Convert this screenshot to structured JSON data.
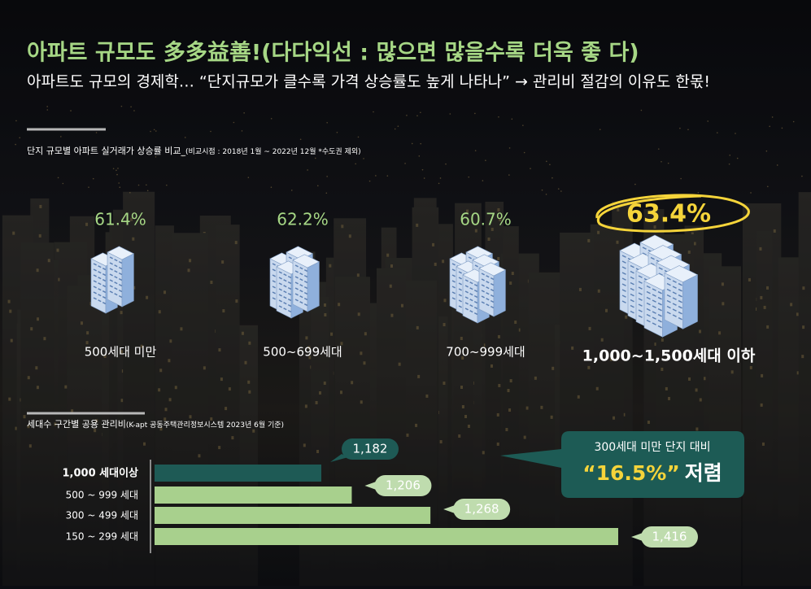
{
  "header": {
    "title": "아파트 규모도 多多益善!(다다익선 : 많으면 많을수록 더욱 좋 다)",
    "subtitle": "아파트도 규모의 경제학… “단지규모가 클수록 가격 상승률도 높게 나타나” → 관리비 절감의 이유도 한몫!"
  },
  "chart_data": [
    {
      "type": "pictogram",
      "title": "단지 규모별 아파트 실거래가 상승률 비교_",
      "subtitle": "(비교시점 : 2018년 1월 ~ 2022년 12월 *수도권 제외)",
      "categories": [
        "500세대 미만",
        "500~699세대",
        "700~999세대",
        "1,000~1,500세대 이하"
      ],
      "values": [
        61.4,
        62.2,
        60.7,
        63.4
      ],
      "value_labels": [
        "61.4%",
        "62.2%",
        "60.7%",
        "63.4%"
      ],
      "color": "#a6d785",
      "highlight_color": "#f5d43a"
    },
    {
      "type": "hbar",
      "title": "세대수 구간별 공용 관리비",
      "subtitle": "(K-apt 공동주택관리정보시스템 2023년 6월 기준)",
      "categories": [
        "1,000 세대이상",
        "500 ~ 999 세대",
        "300 ~ 499 세대",
        "150 ~ 299 세대"
      ],
      "values": [
        1182,
        1206,
        1268,
        1416
      ],
      "value_labels": [
        "1,182",
        "1,206",
        "1,268",
        "1,416"
      ],
      "colors": [
        "#1e5a55",
        "#a8d08d",
        "#a8d08d",
        "#a8d08d"
      ],
      "callout": {
        "line1": "300세대 미만 단지 대비",
        "highlight": "“16.5%”",
        "suffix": "저렴"
      }
    }
  ]
}
